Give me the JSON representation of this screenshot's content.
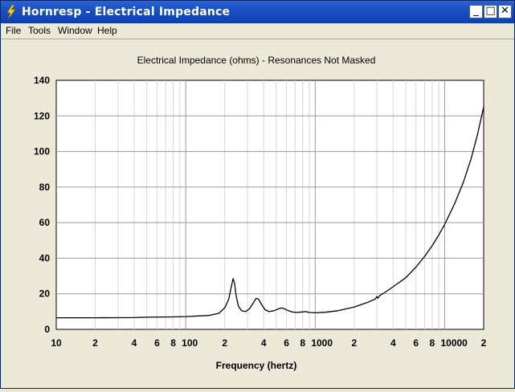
{
  "window": {
    "title": "Hornresp - Electrical Impedance",
    "minimize_glyph": "_",
    "maximize_glyph": "□",
    "close_glyph": "✕",
    "icon": "hornresp-lightning-icon"
  },
  "menu": [
    {
      "label": "File"
    },
    {
      "label": "Tools"
    },
    {
      "label": "Window"
    },
    {
      "label": "Help"
    }
  ],
  "chart_data": {
    "type": "line",
    "title": "Electrical Impedance (ohms) - Resonances Not Masked",
    "xlabel": "Frequency (hertz)",
    "ylabel": "",
    "x_scale": "log",
    "xlim": [
      10,
      20000
    ],
    "ylim": [
      0,
      140
    ],
    "grid": true,
    "y_ticks": [
      "0",
      "20",
      "40",
      "60",
      "80",
      "100",
      "120",
      "140"
    ],
    "x_tick_labels": [
      {
        "f": 10,
        "label": "10"
      },
      {
        "f": 20,
        "label": "2"
      },
      {
        "f": 40,
        "label": "4"
      },
      {
        "f": 60,
        "label": "6"
      },
      {
        "f": 80,
        "label": "8"
      },
      {
        "f": 100,
        "label": "100"
      },
      {
        "f": 200,
        "label": "2"
      },
      {
        "f": 400,
        "label": "4"
      },
      {
        "f": 600,
        "label": "6"
      },
      {
        "f": 800,
        "label": "8"
      },
      {
        "f": 1000,
        "label": "1000"
      },
      {
        "f": 2000,
        "label": "2"
      },
      {
        "f": 4000,
        "label": "4"
      },
      {
        "f": 6000,
        "label": "6"
      },
      {
        "f": 8000,
        "label": "8"
      },
      {
        "f": 10000,
        "label": "10000"
      },
      {
        "f": 20000,
        "label": "2"
      }
    ],
    "series": [
      {
        "color": "#000000",
        "points": [
          [
            10,
            6.5
          ],
          [
            20,
            6.5
          ],
          [
            40,
            6.6
          ],
          [
            50,
            6.8
          ],
          [
            80,
            7
          ],
          [
            100,
            7.2
          ],
          [
            150,
            7.8
          ],
          [
            180,
            9
          ],
          [
            200,
            12
          ],
          [
            215,
            17
          ],
          [
            225,
            24
          ],
          [
            232,
            28.5
          ],
          [
            238,
            26
          ],
          [
            245,
            19
          ],
          [
            255,
            13
          ],
          [
            270,
            10.5
          ],
          [
            290,
            10
          ],
          [
            310,
            11.5
          ],
          [
            330,
            14.5
          ],
          [
            350,
            17.5
          ],
          [
            365,
            17
          ],
          [
            385,
            14
          ],
          [
            410,
            11
          ],
          [
            440,
            10
          ],
          [
            480,
            10.5
          ],
          [
            520,
            11.5
          ],
          [
            550,
            12
          ],
          [
            580,
            11.5
          ],
          [
            620,
            10.5
          ],
          [
            660,
            9.8
          ],
          [
            720,
            9.5
          ],
          [
            800,
            9.8
          ],
          [
            850,
            10
          ],
          [
            900,
            9.5
          ],
          [
            1000,
            9.3
          ],
          [
            1200,
            9.6
          ],
          [
            1500,
            10.5
          ],
          [
            2000,
            12.5
          ],
          [
            2500,
            15
          ],
          [
            2900,
            17
          ],
          [
            3000,
            18.5
          ],
          [
            3050,
            17.5
          ],
          [
            3150,
            19
          ],
          [
            3500,
            21
          ],
          [
            4000,
            24
          ],
          [
            5000,
            29
          ],
          [
            6000,
            35
          ],
          [
            7000,
            41
          ],
          [
            8000,
            47
          ],
          [
            9000,
            53
          ],
          [
            10000,
            59
          ],
          [
            12000,
            71
          ],
          [
            14000,
            83
          ],
          [
            16000,
            96
          ],
          [
            18000,
            110
          ],
          [
            20000,
            125
          ]
        ]
      }
    ]
  }
}
